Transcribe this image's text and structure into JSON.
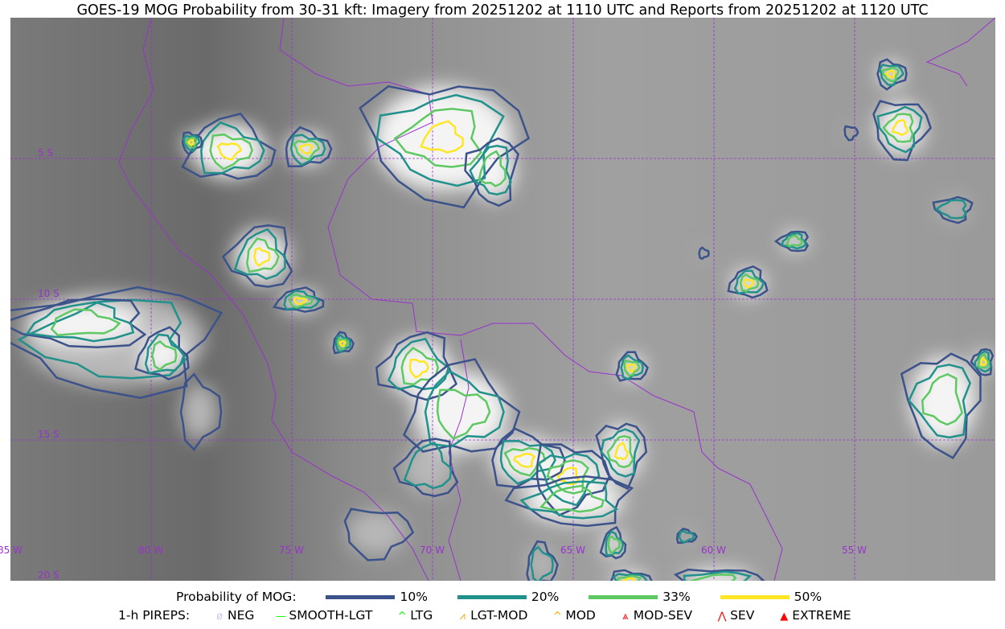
{
  "title": "GOES-19 MOG Probability from 30-31 kft: Imagery from 20251202 at 1110 UTC and Reports from 20251202 at 1120 UTC",
  "grid": {
    "lon_labels": [
      "85 W",
      "80 W",
      "75 W",
      "70 W",
      "65 W",
      "60 W",
      "55 W"
    ],
    "lat_labels": [
      "5 S",
      "10 S",
      "15 S",
      "20 S"
    ],
    "color": "#9932cc"
  },
  "legend": {
    "prob_label": "Probability of MOG:",
    "levels": [
      {
        "label": "10%",
        "color": "#3b528b"
      },
      {
        "label": "20%",
        "color": "#21918c"
      },
      {
        "label": "33%",
        "color": "#5ec962"
      },
      {
        "label": "50%",
        "color": "#fde725"
      }
    ],
    "pirep_label": "1-h PIREPS:",
    "pireps": [
      {
        "label": "NEG",
        "icon": "neg-circle-slash-icon",
        "color": "#c8c8ff"
      },
      {
        "label": "SMOOTH-LGT",
        "icon": "line-icon",
        "color": "#00ff00"
      },
      {
        "label": "LTG",
        "icon": "caret-icon",
        "color": "#00ff00"
      },
      {
        "label": "LGT-MOD",
        "icon": "caret-bar-icon",
        "color": "#ffa500"
      },
      {
        "label": "MOD",
        "icon": "caret-icon",
        "color": "#ffa500"
      },
      {
        "label": "MOD-SEV",
        "icon": "double-caret-bar-icon",
        "color": "#ff0000"
      },
      {
        "label": "SEV",
        "icon": "double-caret-icon",
        "color": "#ff0000"
      },
      {
        "label": "EXTREME",
        "icon": "filled-triangle-icon",
        "color": "#ff0000"
      }
    ]
  }
}
